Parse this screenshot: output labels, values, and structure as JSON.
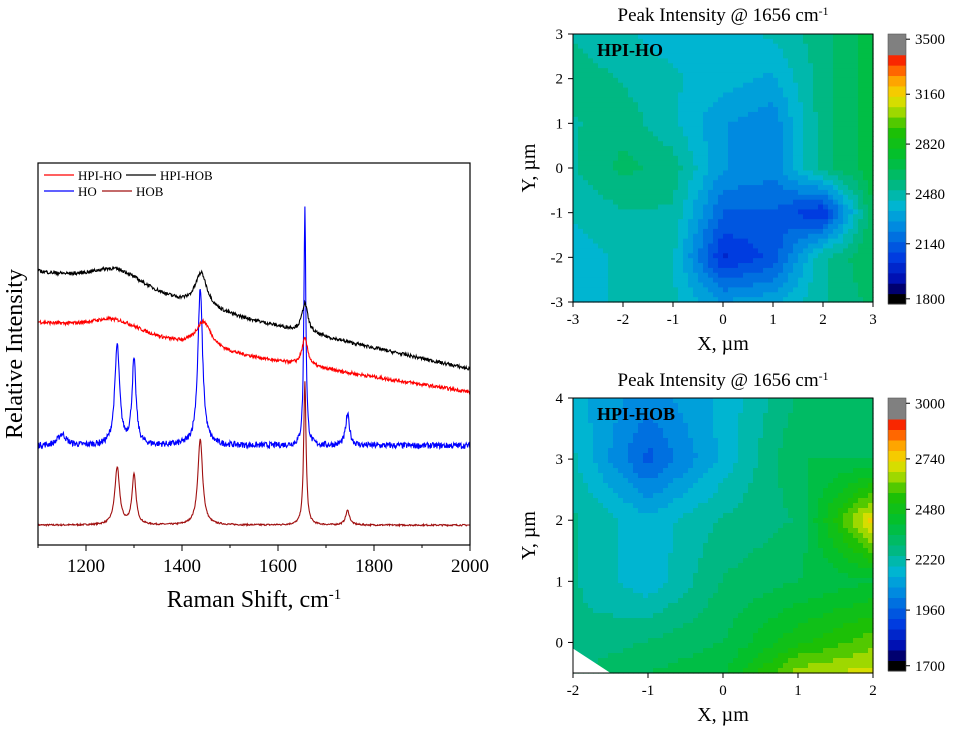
{
  "chart_data": [
    {
      "type": "line",
      "xlabel": "Raman Shift, cm",
      "xlabel_sup": "-1",
      "ylabel": "Relative Intensity",
      "xlim": [
        1100,
        2000
      ],
      "xticks": [
        1200,
        1400,
        1600,
        1800,
        2000
      ],
      "ylim": [
        0,
        100
      ],
      "yticks_shown": false,
      "legend_position": "top-left",
      "series": [
        {
          "name": "HPI-HO",
          "color": "#ff0000",
          "baseline": [
            57.6,
            40
          ],
          "peaks": [
            {
              "center": 1260,
              "height": 4.5,
              "width": 150
            },
            {
              "center": 1445,
              "height": 7,
              "width": 40
            },
            {
              "center": 1656,
              "height": 7,
              "width": 15
            }
          ]
        },
        {
          "name": "HPI-HOB",
          "color": "#000000",
          "baseline": [
            70.7,
            46
          ],
          "peaks": [
            {
              "center": 1265,
              "height": 6,
              "width": 150
            },
            {
              "center": 1440,
              "height": 9,
              "width": 30
            },
            {
              "center": 1656,
              "height": 7.6,
              "width": 15
            }
          ]
        },
        {
          "name": "HO",
          "color": "#0000ff",
          "baseline": [
            26,
            26
          ],
          "peaks": [
            {
              "center": 1150,
              "height": 3,
              "width": 20
            },
            {
              "center": 1265,
              "height": 26,
              "width": 12
            },
            {
              "center": 1300,
              "height": 22,
              "width": 10
            },
            {
              "center": 1438,
              "height": 41,
              "width": 12
            },
            {
              "center": 1656,
              "height": 62,
              "width": 5
            },
            {
              "center": 1745,
              "height": 8,
              "width": 10
            }
          ]
        },
        {
          "name": "HOB",
          "color": "#a01010",
          "baseline": [
            5.2,
            5.2
          ],
          "peaks": [
            {
              "center": 1265,
              "height": 15,
              "width": 12
            },
            {
              "center": 1300,
              "height": 13,
              "width": 10
            },
            {
              "center": 1438,
              "height": 22.5,
              "width": 12
            },
            {
              "center": 1656,
              "height": 37.5,
              "width": 6
            },
            {
              "center": 1745,
              "height": 3.8,
              "width": 10
            }
          ]
        }
      ]
    },
    {
      "type": "heatmap",
      "title": "Peak Intensity @ 1656 cm",
      "title_sup": "-1",
      "label": "HPI-HO",
      "xlabel": "X, µm",
      "ylabel": "Y, µm",
      "xlim": [
        -3,
        3
      ],
      "ylim": [
        -3,
        3
      ],
      "xticks": [
        -3,
        -2,
        -1,
        0,
        1,
        2,
        3
      ],
      "yticks": [
        -3,
        -2,
        -1,
        0,
        1,
        2,
        3
      ],
      "x": [
        -3,
        -2,
        -1,
        0,
        1,
        2,
        3
      ],
      "y": [
        3,
        2,
        1,
        0,
        -1,
        -2,
        -3
      ],
      "z": [
        [
          2500,
          2450,
          2400,
          2400,
          2450,
          2550,
          2700
        ],
        [
          2550,
          2500,
          2450,
          2400,
          2350,
          2550,
          2700
        ],
        [
          2500,
          2550,
          2450,
          2300,
          2250,
          2550,
          2700
        ],
        [
          2500,
          2600,
          2550,
          2300,
          2250,
          2550,
          2700
        ],
        [
          2450,
          2500,
          2500,
          2150,
          2150,
          2000,
          2650
        ],
        [
          2400,
          2450,
          2450,
          2000,
          2100,
          2500,
          2650
        ],
        [
          2400,
          2450,
          2450,
          2300,
          2350,
          2500,
          2600
        ]
      ],
      "colorbar": {
        "min": 1800,
        "max": 3500,
        "ticks": [
          1800,
          2140,
          2480,
          2820,
          3160,
          3500
        ]
      }
    },
    {
      "type": "heatmap",
      "title": "Peak Intensity @ 1656 cm",
      "title_sup": "-1",
      "label": "HPI-HOB",
      "xlabel": "X, µm",
      "ylabel": "Y, µm",
      "xlim": [
        -2,
        2
      ],
      "ylim": [
        -0.5,
        4
      ],
      "xticks": [
        -2,
        -1,
        0,
        1,
        2
      ],
      "yticks": [
        0,
        1,
        2,
        3,
        4
      ],
      "x": [
        -2,
        -1,
        0,
        1,
        2
      ],
      "y": [
        4,
        3,
        2,
        1,
        0,
        -0.5
      ],
      "z": [
        [
          2150,
          2050,
          2150,
          2300,
          2350
        ],
        [
          2200,
          1950,
          2150,
          2350,
          2350
        ],
        [
          2250,
          2150,
          2250,
          2300,
          2750
        ],
        [
          2250,
          2150,
          2300,
          2350,
          2400
        ],
        [
          2250,
          2300,
          2350,
          2500,
          2600
        ],
        [
          2300,
          2350,
          2400,
          2650,
          2700
        ]
      ],
      "colorbar": {
        "min": 1700,
        "max": 3000,
        "ticks": [
          1700,
          1960,
          2220,
          2480,
          2740,
          3000
        ]
      }
    }
  ]
}
